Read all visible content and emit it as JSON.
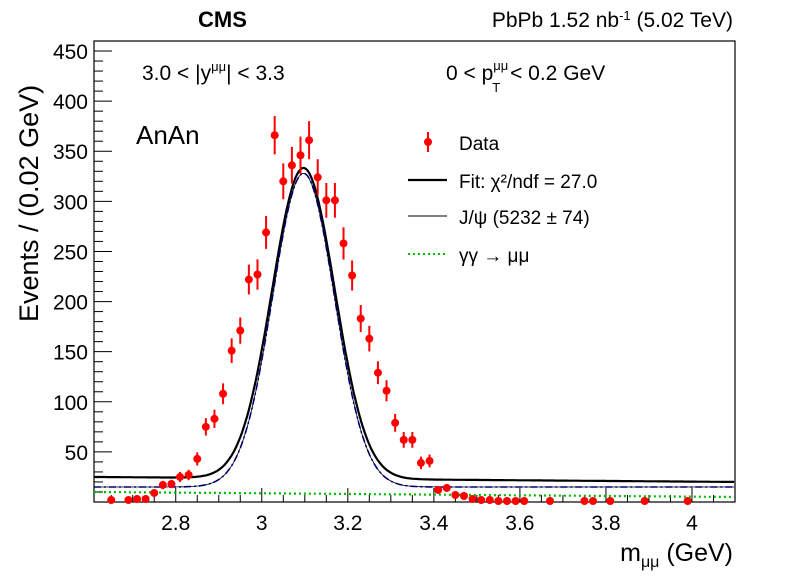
{
  "header": {
    "experiment": "CMS",
    "dataset_prefix": "PbPb 1.52 nb",
    "dataset_exp": "-1",
    "dataset_suffix": " (5.02 TeV)"
  },
  "annotations": {
    "rapidity_left": "3.0 < |y",
    "rapidity_sup": "μμ",
    "rapidity_right": "| < 3.3",
    "pt_left": "0 < p",
    "pt_sup": "μμ",
    "pt_sub": "T",
    "pt_right": " < 0.2 GeV",
    "category": "AnAn"
  },
  "legend": {
    "data": "Data",
    "fit": "Fit: χ²/ndf = 27.0",
    "jpsi": "J/ψ (5232 ± 74)",
    "gg": "γγ → μμ"
  },
  "colors": {
    "data": "#ff0000",
    "fit": "#000000",
    "jpsi_blue": "#0000ff",
    "gg": "#00bb00"
  },
  "chart_data": {
    "type": "scatter",
    "xlabel": "m",
    "xlabel_sub": "μμ",
    "xlabel_unit": " (GeV)",
    "ylabel": "Events / (0.02 GeV)",
    "xlim": [
      2.61,
      4.1
    ],
    "ylim": [
      0,
      460
    ],
    "xticks": [
      2.8,
      3.0,
      3.2,
      3.4,
      3.6,
      3.8,
      4.0
    ],
    "xtick_labels": [
      "2.8",
      "3",
      "3.2",
      "3.4",
      "3.6",
      "3.8",
      "4"
    ],
    "yticks": [
      50,
      100,
      150,
      200,
      250,
      300,
      350,
      400,
      450
    ],
    "ytick_labels": [
      "50",
      "100",
      "150",
      "200",
      "250",
      "300",
      "350",
      "400",
      "450"
    ],
    "series": [
      {
        "name": "Data",
        "kind": "points",
        "x": [
          2.65,
          2.69,
          2.71,
          2.73,
          2.75,
          2.77,
          2.79,
          2.81,
          2.83,
          2.85,
          2.87,
          2.89,
          2.91,
          2.93,
          2.95,
          2.97,
          2.99,
          3.01,
          3.03,
          3.05,
          3.07,
          3.09,
          3.11,
          3.13,
          3.15,
          3.17,
          3.19,
          3.21,
          3.23,
          3.25,
          3.27,
          3.29,
          3.31,
          3.33,
          3.35,
          3.37,
          3.39,
          3.41,
          3.43,
          3.45,
          3.47,
          3.49,
          3.51,
          3.53,
          3.55,
          3.57,
          3.59,
          3.61,
          3.67,
          3.75,
          3.77,
          3.81,
          3.89,
          3.99
        ],
        "y": [
          2,
          2,
          3,
          3,
          9,
          17,
          18,
          25,
          27,
          43,
          75,
          83,
          108,
          151,
          171,
          222,
          227,
          269,
          366,
          320,
          336,
          346,
          361,
          324,
          301,
          301,
          258,
          226,
          183,
          163,
          129,
          111,
          79,
          62,
          62,
          39,
          41,
          12,
          14,
          7,
          6,
          3,
          2,
          2,
          1,
          1,
          1,
          1,
          1,
          1,
          1,
          1,
          1,
          1
        ],
        "yerr": [
          1.5,
          1.5,
          1.7,
          1.7,
          3,
          4.1,
          4.2,
          5,
          5.2,
          6.6,
          8.7,
          9.1,
          10.4,
          12.3,
          13.1,
          14.9,
          15.1,
          16.4,
          19.1,
          17.9,
          18.3,
          18.6,
          19,
          18,
          17.3,
          17.3,
          16.1,
          15,
          13.5,
          12.8,
          11.4,
          10.5,
          8.9,
          7.9,
          7.9,
          6.2,
          6.4,
          3.5,
          3.7,
          2.6,
          2.4,
          1.7,
          1.4,
          1.4,
          1,
          1,
          1,
          1,
          1,
          1,
          1,
          1,
          1,
          1
        ]
      },
      {
        "name": "Fit: χ²/ndf = 27.0",
        "kind": "gauss_line",
        "mean": 3.097,
        "sigma": 0.073,
        "amplitude": 310,
        "baseline_start": 25,
        "baseline_end": 20,
        "style": "solid-thick"
      },
      {
        "name": "J/ψ (5232 ± 74)",
        "kind": "gauss_line",
        "mean": 3.097,
        "sigma": 0.072,
        "amplitude": 313,
        "baseline_start": 15,
        "baseline_end": 15,
        "style": "dashdot"
      },
      {
        "name": "γγ → μμ",
        "kind": "linear_line",
        "y_start": 10,
        "y_end": 5,
        "style": "dotted"
      }
    ]
  }
}
